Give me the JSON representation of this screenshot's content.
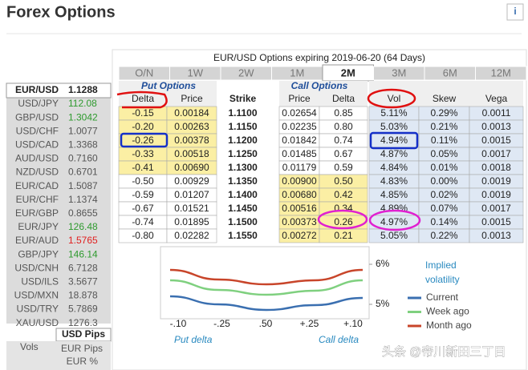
{
  "header": {
    "title": "Forex Options",
    "info": "i"
  },
  "rates": {
    "selected": {
      "pair": "EUR/USD",
      "rate": "1.1288"
    },
    "rows": [
      {
        "pair": "USD/JPY",
        "rate": "112.08",
        "color": "#2e9a2e"
      },
      {
        "pair": "GBP/USD",
        "rate": "1.3042",
        "color": "#2e9a2e"
      },
      {
        "pair": "USD/CHF",
        "rate": "1.0077",
        "color": "#555555"
      },
      {
        "pair": "USD/CAD",
        "rate": "1.3368",
        "color": "#555555"
      },
      {
        "pair": "AUD/USD",
        "rate": "0.7160",
        "color": "#555555"
      },
      {
        "pair": "NZD/USD",
        "rate": "0.6701",
        "color": "#555555"
      },
      {
        "pair": "EUR/CAD",
        "rate": "1.5087",
        "color": "#555555"
      },
      {
        "pair": "EUR/CHF",
        "rate": "1.1374",
        "color": "#555555"
      },
      {
        "pair": "EUR/GBP",
        "rate": "0.8655",
        "color": "#555555"
      },
      {
        "pair": "EUR/JPY",
        "rate": "126.48",
        "color": "#2e9a2e"
      },
      {
        "pair": "EUR/AUD",
        "rate": "1.5765",
        "color": "#e02020"
      },
      {
        "pair": "GBP/JPY",
        "rate": "146.14",
        "color": "#2e9a2e"
      },
      {
        "pair": "USD/CNH",
        "rate": "6.7128",
        "color": "#555555"
      },
      {
        "pair": "USD/ILS",
        "rate": "3.5677",
        "color": "#555555"
      },
      {
        "pair": "USD/MXN",
        "rate": "18.878",
        "color": "#555555"
      },
      {
        "pair": "USD/TRY",
        "rate": "5.7869",
        "color": "#555555"
      },
      {
        "pair": "XAU/USD",
        "rate": "1276.3",
        "color": "#555555"
      }
    ]
  },
  "units": {
    "selected": "USD Pips",
    "vols": "Vols",
    "eur_pips": "EUR Pips",
    "eur_pct": "EUR %"
  },
  "options": {
    "title": "EUR/USD Options expiring 2019-06-20 (64 Days)",
    "tabs": [
      "O/N",
      "1W",
      "2W",
      "1M",
      "2M",
      "3M",
      "6M",
      "12M"
    ],
    "active_tab": 4,
    "put_label": "Put Options",
    "call_label": "Call Options",
    "columns": [
      "Delta",
      "Price",
      "Strike",
      "Price",
      "Delta",
      "Vol",
      "Skew",
      "Vega"
    ],
    "rows": [
      [
        "-0.15",
        "0.00184",
        "1.1100",
        "0.02654",
        "0.85",
        "5.11%",
        "0.29%",
        "0.0011"
      ],
      [
        "-0.20",
        "0.00263",
        "1.1150",
        "0.02235",
        "0.80",
        "5.03%",
        "0.21%",
        "0.0013"
      ],
      [
        "-0.26",
        "0.00378",
        "1.1200",
        "0.01842",
        "0.74",
        "4.94%",
        "0.11%",
        "0.0015"
      ],
      [
        "-0.33",
        "0.00518",
        "1.1250",
        "0.01485",
        "0.67",
        "4.87%",
        "0.05%",
        "0.0017"
      ],
      [
        "-0.41",
        "0.00690",
        "1.1300",
        "0.01179",
        "0.59",
        "4.84%",
        "0.01%",
        "0.0018"
      ],
      [
        "-0.50",
        "0.00929",
        "1.1350",
        "0.00900",
        "0.50",
        "4.83%",
        "0.00%",
        "0.0019"
      ],
      [
        "-0.59",
        "0.01207",
        "1.1400",
        "0.00680",
        "0.42",
        "4.85%",
        "0.02%",
        "0.0019"
      ],
      [
        "-0.67",
        "0.01521",
        "1.1450",
        "0.00516",
        "0.34",
        "4.89%",
        "0.07%",
        "0.0017"
      ],
      [
        "-0.74",
        "0.01895",
        "1.1500",
        "0.00373",
        "0.26",
        "4.97%",
        "0.14%",
        "0.0015"
      ],
      [
        "-0.80",
        "0.02282",
        "1.1550",
        "0.00272",
        "0.21",
        "5.05%",
        "0.22%",
        "0.0013"
      ]
    ]
  },
  "smile": {
    "type": "line",
    "legend_title": "Implied volatility",
    "categories": [
      "-.10",
      "-.25",
      ".50",
      "+.25",
      "+.10"
    ],
    "ylim": [
      4.64,
      6.44
    ],
    "yticks": [
      {
        "value": 6,
        "label": "6%"
      },
      {
        "value": 5,
        "label": "5%"
      }
    ],
    "series": [
      {
        "name": "Current",
        "color": "#3a6fb0",
        "values": [
          5.2,
          5.0,
          4.86,
          4.98,
          5.16
        ]
      },
      {
        "name": "Week ago",
        "color": "#7fd07f",
        "values": [
          5.6,
          5.36,
          5.24,
          5.34,
          5.6
        ]
      },
      {
        "name": "Month ago",
        "color": "#c8452a",
        "values": [
          5.86,
          5.62,
          5.5,
          5.6,
          5.86
        ]
      }
    ],
    "x_left_label": "Put delta",
    "x_right_label": "Call delta"
  },
  "watermark": "头条 @帝川新田三丁目"
}
